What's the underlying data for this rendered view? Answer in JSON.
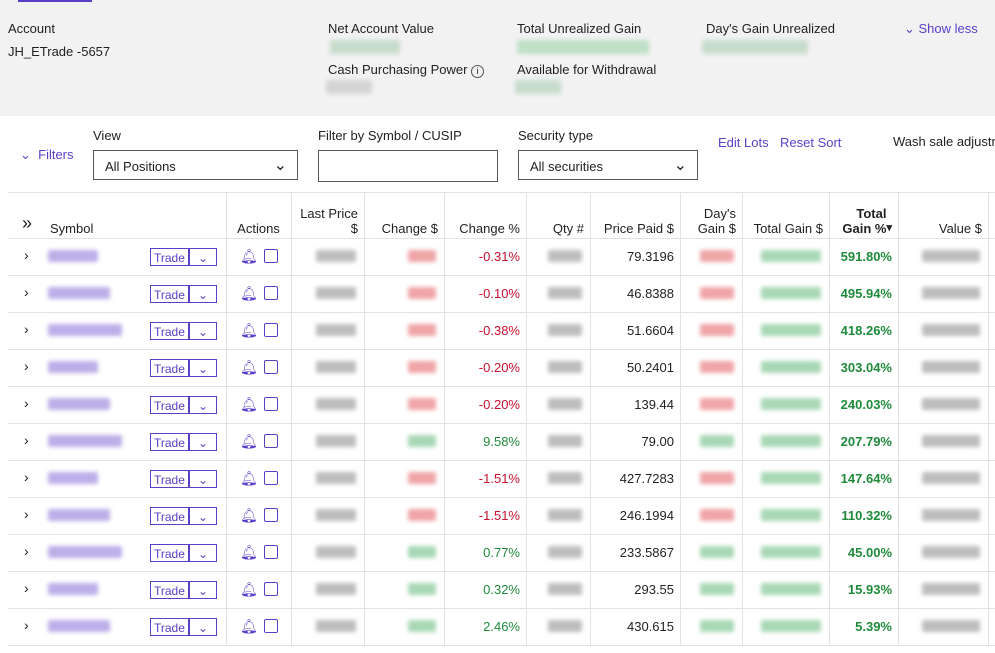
{
  "summary": {
    "account_label": "Account",
    "account_name": "JH_ETrade -5657",
    "net_account_value": "Net Account Value",
    "total_unrealized_gain": "Total Unrealized Gain",
    "days_gain_unrealized": "Day's Gain Unrealized",
    "show_less": "Show less",
    "cash_purchasing_power": "Cash Purchasing Power",
    "available_for_withdrawal": "Available for Withdrawal"
  },
  "filters": {
    "toggle": "Filters",
    "view_label": "View",
    "view_value": "All Positions",
    "symbol_label": "Filter by Symbol / CUSIP",
    "security_label": "Security type",
    "security_value": "All securities",
    "edit_lots": "Edit Lots",
    "reset_sort": "Reset Sort",
    "wash_sale": "Wash sale adjustr"
  },
  "table": {
    "headers": [
      "Symbol",
      "Actions",
      "Last Price $",
      "Change $",
      "Change %",
      "Qty #",
      "Price Paid $",
      "Day's Gain $",
      "Total Gain $",
      "Total Gain %",
      "Value $"
    ],
    "trade_label": "Trade",
    "rows": [
      [
        "-0.31%",
        "79.3196",
        "591.80%"
      ],
      [
        "-0.10%",
        "46.8388",
        "495.94%"
      ],
      [
        "-0.38%",
        "51.6604",
        "418.26%"
      ],
      [
        "-0.20%",
        "50.2401",
        "303.04%"
      ],
      [
        "-0.20%",
        "139.44",
        "240.03%"
      ],
      [
        "9.58%",
        "79.00",
        "207.79%"
      ],
      [
        "-1.51%",
        "427.7283",
        "147.64%"
      ],
      [
        "-1.51%",
        "246.1994",
        "110.32%"
      ],
      [
        "0.77%",
        "233.5867",
        "45.00%"
      ],
      [
        "0.32%",
        "293.55",
        "15.93%"
      ],
      [
        "2.46%",
        "430.615",
        "5.39%"
      ]
    ]
  }
}
